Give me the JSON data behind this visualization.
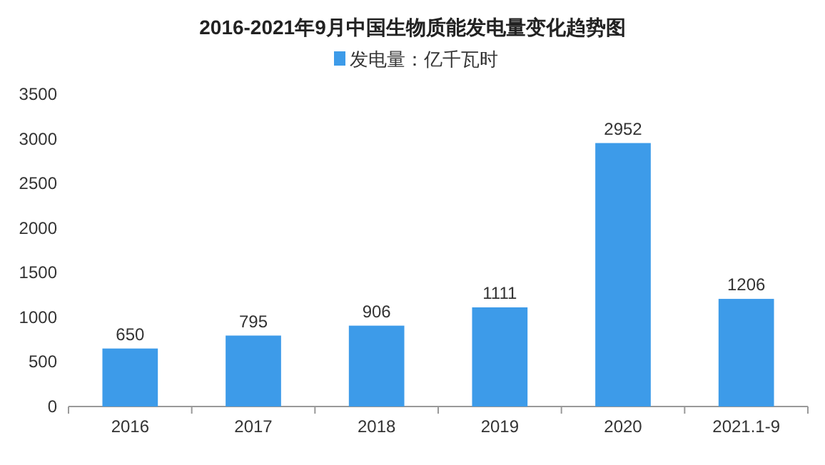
{
  "chart_data": {
    "type": "bar",
    "title": "2016-2021年9月中国生物质能发电量变化趋势图",
    "categories": [
      "2016",
      "2017",
      "2018",
      "2019",
      "2020",
      "2021.1-9"
    ],
    "series": [
      {
        "name": "发电量：亿千瓦时",
        "color": "#3d9be9",
        "values": [
          650,
          795,
          906,
          1111,
          2952,
          1206
        ]
      }
    ],
    "ylim": [
      0,
      3500
    ],
    "yticks": [
      0,
      500,
      1000,
      1500,
      2000,
      2500,
      3000,
      3500
    ],
    "data_labels": true,
    "legend": "top",
    "grid": false
  }
}
